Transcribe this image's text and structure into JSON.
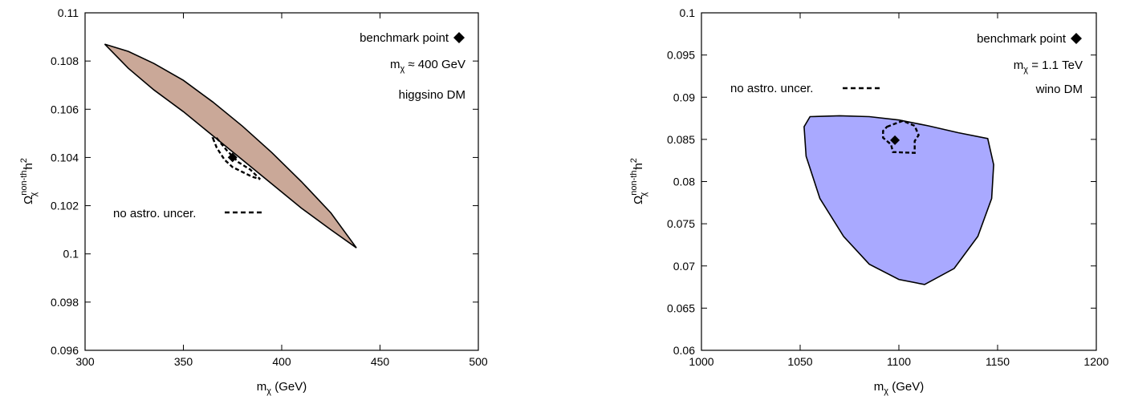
{
  "chart_data": [
    {
      "type": "scatter",
      "xlabel": "m_χ (GeV)",
      "xlabel_main": "m",
      "xlabel_sub": "χ",
      "xlabel_rest": " (GeV)",
      "ylabel_main": "Ω",
      "ylabel_sub": "χ",
      "ylabel_sup": "non-th.",
      "ylabel_rest": " h",
      "ylabel_rest_sup": "2",
      "xlim": [
        300,
        500
      ],
      "ylim": [
        0.096,
        0.11
      ],
      "xticks": [
        300,
        350,
        400,
        450,
        500
      ],
      "yticks": [
        0.096,
        0.098,
        0.1,
        0.102,
        0.104,
        0.106,
        0.108,
        0.11
      ],
      "xtick_labels": [
        "300",
        "350",
        "400",
        "450",
        "500"
      ],
      "ytick_labels": [
        "0.096",
        "0.098",
        "0.1",
        "0.102",
        "0.104",
        "0.106",
        "0.108",
        "0.11"
      ],
      "fill_color": "#caa898",
      "region": [
        [
          310,
          0.1087
        ],
        [
          322,
          0.1077
        ],
        [
          335,
          0.1068
        ],
        [
          350,
          0.1059
        ],
        [
          365,
          0.1049
        ],
        [
          380,
          0.1039
        ],
        [
          395,
          0.1029
        ],
        [
          410,
          0.1019
        ],
        [
          425,
          0.101
        ],
        [
          438,
          0.10025
        ],
        [
          425,
          0.1017
        ],
        [
          410,
          0.103
        ],
        [
          395,
          0.1042
        ],
        [
          380,
          0.1053
        ],
        [
          365,
          0.1063
        ],
        [
          350,
          0.1072
        ],
        [
          335,
          0.1079
        ],
        [
          322,
          0.1084
        ],
        [
          310,
          0.1087
        ]
      ],
      "dashed_region": [
        [
          365,
          0.1048
        ],
        [
          367,
          0.1044
        ],
        [
          371,
          0.1039
        ],
        [
          375,
          0.1036
        ],
        [
          380,
          0.1034
        ],
        [
          385,
          0.1032
        ],
        [
          389,
          0.1031
        ],
        [
          384,
          0.1035
        ],
        [
          378,
          0.1038
        ],
        [
          372,
          0.1043
        ],
        [
          367,
          0.1048
        ],
        [
          365,
          0.1048
        ]
      ],
      "benchmark": [
        375,
        0.104
      ],
      "legend_benchmark": "benchmark point",
      "annot_mass_main": "m",
      "annot_mass_sub": "χ",
      "annot_mass_rest": " ≈ 400 GeV",
      "annot_type": "higgsino DM",
      "legend_noastro": "no astro. uncer.",
      "benchmark_legend_pos": "top-right",
      "noastro_legend_pos": "middle-left"
    },
    {
      "type": "scatter",
      "xlabel": "m_χ (GeV)",
      "xlabel_main": "m",
      "xlabel_sub": "χ",
      "xlabel_rest": " (GeV)",
      "ylabel_main": "Ω",
      "ylabel_sub": "χ",
      "ylabel_sup": "non-th.",
      "ylabel_rest": " h",
      "ylabel_rest_sup": "2",
      "xlim": [
        1000,
        1200
      ],
      "ylim": [
        0.06,
        0.1
      ],
      "xticks": [
        1000,
        1050,
        1100,
        1150,
        1200
      ],
      "yticks": [
        0.06,
        0.065,
        0.07,
        0.075,
        0.08,
        0.085,
        0.09,
        0.095,
        0.1
      ],
      "xtick_labels": [
        "1000",
        "1050",
        "1100",
        "1150",
        "1200"
      ],
      "ytick_labels": [
        "0.06",
        "0.065",
        "0.07",
        "0.075",
        "0.08",
        "0.085",
        "0.09",
        "0.095",
        "0.1"
      ],
      "fill_color": "#a9a9ff",
      "region": [
        [
          1055,
          0.0877
        ],
        [
          1070,
          0.0878
        ],
        [
          1085,
          0.0877
        ],
        [
          1100,
          0.0873
        ],
        [
          1115,
          0.0866
        ],
        [
          1130,
          0.0858
        ],
        [
          1145,
          0.0851
        ],
        [
          1148,
          0.082
        ],
        [
          1147,
          0.078
        ],
        [
          1140,
          0.0735
        ],
        [
          1128,
          0.0697
        ],
        [
          1113,
          0.0678
        ],
        [
          1100,
          0.0684
        ],
        [
          1085,
          0.0702
        ],
        [
          1072,
          0.0735
        ],
        [
          1060,
          0.078
        ],
        [
          1053,
          0.083
        ],
        [
          1052,
          0.0865
        ],
        [
          1055,
          0.0877
        ]
      ],
      "dashed_region": [
        [
          1094,
          0.0865
        ],
        [
          1102,
          0.0872
        ],
        [
          1108,
          0.0866
        ],
        [
          1110,
          0.0855
        ],
        [
          1108,
          0.0848
        ],
        [
          1108,
          0.0834
        ],
        [
          1097,
          0.0835
        ],
        [
          1096,
          0.0844
        ],
        [
          1092,
          0.0852
        ],
        [
          1092,
          0.086
        ],
        [
          1094,
          0.0865
        ]
      ],
      "benchmark": [
        1098,
        0.0849
      ],
      "legend_benchmark": "benchmark point",
      "annot_mass_main": "m",
      "annot_mass_sub": "χ",
      "annot_mass_rest": " = 1.1 TeV",
      "annot_type": "wino DM",
      "legend_noastro": "no astro. uncer.",
      "benchmark_legend_pos": "top-right",
      "noastro_legend_pos": "top-left"
    }
  ]
}
